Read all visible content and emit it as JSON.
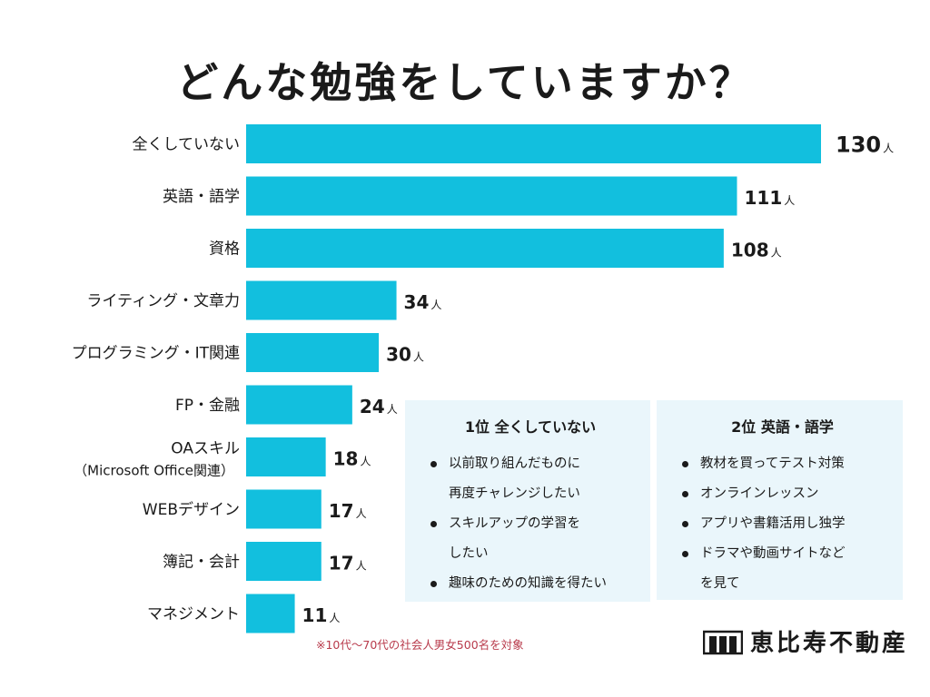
{
  "title": "どんな勉強をしていますか？",
  "chart_data": {
    "type": "bar",
    "orientation": "horizontal",
    "title": "どんな勉強をしていますか？",
    "unit": "人",
    "bar_color": "#12bfde",
    "xlim": [
      0,
      130
    ],
    "categories": [
      [
        "全くしていない"
      ],
      [
        "英語・語学"
      ],
      [
        "資格"
      ],
      [
        "ライティング・文章力"
      ],
      [
        "プログラミング・IT関連"
      ],
      [
        "FP・金融"
      ],
      [
        "OAスキル",
        "（Microsoft Office関連）"
      ],
      [
        "WEBデザイン"
      ],
      [
        "簿記・会計"
      ],
      [
        "マネジメント"
      ]
    ],
    "values": [
      130,
      111,
      108,
      34,
      30,
      24,
      18,
      17,
      17,
      11
    ]
  },
  "box1": {
    "title": "1位 全くしていない",
    "items": [
      [
        "以前取り組んだものに",
        "再度チャレンジしたい"
      ],
      [
        "スキルアップの学習を",
        "したい"
      ],
      [
        "趣味のための知識を得たい"
      ]
    ]
  },
  "box2": {
    "title": "2位 英語・語学",
    "items": [
      [
        "教材を買ってテスト対策"
      ],
      [
        "オンラインレッスン"
      ],
      [
        "アプリや書籍活用し独学"
      ],
      [
        "ドラマや動画サイトなど",
        "を見て"
      ]
    ]
  },
  "footnote": "※10代〜70代の社会人男女500名を対象",
  "logo": {
    "text": "恵比寿不動産",
    "icon": "building-logo-icon"
  }
}
